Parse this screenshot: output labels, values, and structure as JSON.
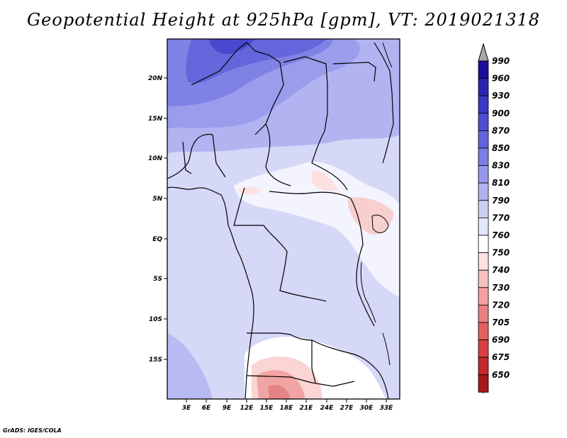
{
  "title": "Geopotential Height at 925hPa [gpm], VT: 2019021318",
  "credit": "GrADS: IGES/COLA",
  "lat_labels": [
    "20N",
    "15N",
    "10N",
    "5N",
    "EQ",
    "5S",
    "10S",
    "15S"
  ],
  "lon_labels": [
    "3E",
    "6E",
    "9E",
    "12E",
    "15E",
    "18E",
    "21E",
    "24E",
    "27E",
    "30E",
    "33E"
  ],
  "colorbar": {
    "levels": [
      "990",
      "960",
      "930",
      "900",
      "870",
      "850",
      "830",
      "810",
      "790",
      "770",
      "760",
      "750",
      "740",
      "730",
      "720",
      "705",
      "690",
      "675",
      "650"
    ],
    "colors": [
      "#1a0f9a",
      "#2a24b0",
      "#3a38c4",
      "#4c4dd2",
      "#6264db",
      "#7b7ee3",
      "#9598ea",
      "#b0b2f0",
      "#ccceF6",
      "#e4e6fb",
      "#ffffff",
      "#fde0e0",
      "#f8c0c0",
      "#f3a0a0",
      "#ec7f7f",
      "#e35f5f",
      "#d74040",
      "#c42a2a",
      "#a61818"
    ],
    "top_arrow_color": "#a8a8a8",
    "bottom_arrow_color": "#a61818"
  },
  "map_colors": {
    "base": "#d6d8f8",
    "north_dark": "#5a5ad8",
    "north_mid": "#8a8ce8",
    "north_light": "#b2b4f2",
    "warm_light": "#fde4e4",
    "warm_mid": "#f2a8a8",
    "warm_dark": "#e07878",
    "boundary": "#000000"
  }
}
